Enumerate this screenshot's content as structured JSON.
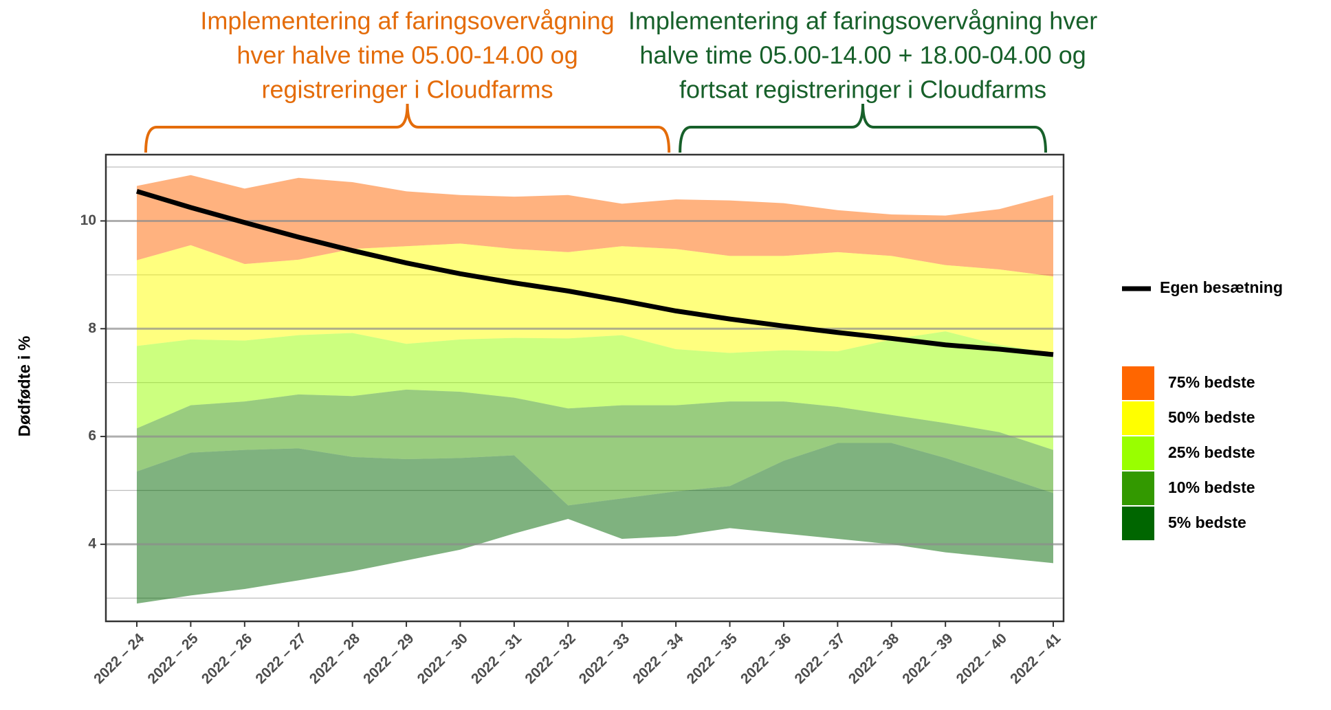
{
  "chart_data": {
    "type": "band",
    "ylabel": "Dødfødte i %",
    "categories": [
      "2022 – 24",
      "2022 – 25",
      "2022 – 26",
      "2022 – 27",
      "2022 – 28",
      "2022 – 29",
      "2022 – 30",
      "2022 – 31",
      "2022 – 32",
      "2022 – 33",
      "2022 – 34",
      "2022 – 35",
      "2022 – 36",
      "2022 – 37",
      "2022 – 38",
      "2022 – 39",
      "2022 – 40",
      "2022 – 41"
    ],
    "ylim": [
      2.57,
      11.23
    ],
    "yticks": [
      4,
      6,
      8,
      10
    ],
    "minor_grid": [
      3,
      5,
      7,
      9,
      11
    ],
    "grid": true,
    "legend": "right",
    "line": {
      "name": "Egen besætning",
      "color": "#000000",
      "values": [
        10.55,
        10.25,
        9.97,
        9.7,
        9.45,
        9.22,
        9.02,
        8.85,
        8.7,
        8.52,
        8.33,
        8.18,
        8.05,
        7.93,
        7.82,
        7.7,
        7.62,
        7.52
      ]
    },
    "bands": [
      {
        "name": "75% bedste",
        "color": "#ff6600",
        "low": [
          9.27,
          9.55,
          9.2,
          9.28,
          9.48,
          9.53,
          9.58,
          9.48,
          9.42,
          9.53,
          9.48,
          9.35,
          9.35,
          9.42,
          9.35,
          9.18,
          9.1,
          8.97
        ],
        "high": [
          10.65,
          10.85,
          10.6,
          10.8,
          10.72,
          10.55,
          10.48,
          10.45,
          10.48,
          10.32,
          10.4,
          10.38,
          10.33,
          10.2,
          10.12,
          10.1,
          10.22,
          10.48
        ]
      },
      {
        "name": "50% bedste",
        "color": "#ffff00",
        "low": [
          7.68,
          7.8,
          7.78,
          7.88,
          7.92,
          7.72,
          7.8,
          7.83,
          7.82,
          7.88,
          7.62,
          7.55,
          7.6,
          7.58,
          7.8,
          7.95,
          7.7,
          7.55
        ],
        "high": [
          9.27,
          9.55,
          9.2,
          9.28,
          9.48,
          9.53,
          9.58,
          9.48,
          9.42,
          9.53,
          9.48,
          9.35,
          9.35,
          9.42,
          9.35,
          9.18,
          9.1,
          8.97
        ]
      },
      {
        "name": "25% bedste",
        "color": "#99ff00",
        "low": [
          6.15,
          6.58,
          6.65,
          6.78,
          6.75,
          6.87,
          6.83,
          6.72,
          6.52,
          6.58,
          6.58,
          6.65,
          6.65,
          6.55,
          6.4,
          6.25,
          6.08,
          5.75
        ],
        "high": [
          7.68,
          7.8,
          7.78,
          7.88,
          7.92,
          7.72,
          7.8,
          7.83,
          7.82,
          7.88,
          7.62,
          7.55,
          7.6,
          7.58,
          7.8,
          7.95,
          7.7,
          7.55
        ]
      },
      {
        "name": "10% bedste",
        "color": "#339900",
        "low": [
          5.35,
          5.7,
          5.75,
          5.78,
          5.62,
          5.58,
          5.6,
          5.65,
          4.72,
          4.85,
          4.98,
          5.08,
          5.55,
          5.88,
          5.88,
          5.6,
          5.28,
          4.95
        ],
        "high": [
          6.15,
          6.58,
          6.65,
          6.78,
          6.75,
          6.87,
          6.83,
          6.72,
          6.52,
          6.58,
          6.58,
          6.65,
          6.65,
          6.55,
          6.4,
          6.25,
          6.08,
          5.75
        ]
      },
      {
        "name": "5% bedste",
        "color": "#006600",
        "low": [
          2.9,
          3.05,
          3.17,
          3.33,
          3.5,
          3.7,
          3.9,
          4.2,
          4.47,
          4.1,
          4.15,
          4.3,
          4.2,
          4.1,
          4.0,
          3.85,
          3.75,
          3.65
        ],
        "high": [
          5.35,
          5.7,
          5.75,
          5.78,
          5.62,
          5.58,
          5.6,
          5.65,
          4.72,
          4.85,
          4.98,
          5.08,
          5.55,
          5.88,
          5.88,
          5.6,
          5.28,
          4.95
        ]
      }
    ],
    "annotations": [
      {
        "color": "#e46c0a",
        "lines": [
          "Implementering af faringsovervågning",
          "hver halve time 05.00-14.00 og",
          "registreringer i Cloudfarms"
        ],
        "from": "2022 – 24",
        "to": "2022 – 34"
      },
      {
        "color": "#17602a",
        "lines": [
          "Implementering af faringsovervågning hver",
          "halve time 05.00-14.00 + 18.00-04.00 og",
          "fortsat registreringer i Cloudfarms"
        ],
        "from": "2022 – 34",
        "to": "2022 – 41"
      }
    ]
  }
}
